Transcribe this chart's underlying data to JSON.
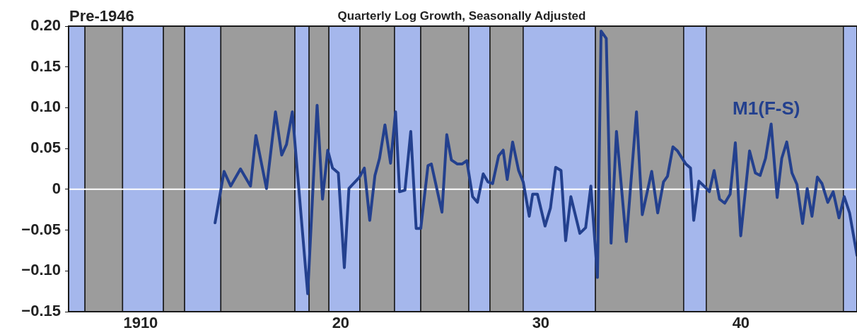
{
  "chart_data": {
    "type": "line",
    "title": "Quarterly Log Growth, Seasonally Adjusted",
    "subtitle": "Pre-1946",
    "xlim": [
      1906.4,
      1945.8
    ],
    "xticks": [
      1910,
      {
        "value": 1920,
        "label": "20"
      },
      {
        "value": 1930,
        "label": "30"
      },
      {
        "value": 1940,
        "label": "40"
      }
    ],
    "ylim": [
      -0.15,
      0.2
    ],
    "yticks": [
      {
        "value": -0.15,
        "label": "−0.15"
      },
      {
        "value": -0.1,
        "label": "−0.10"
      },
      {
        "value": -0.05,
        "label": "−0.05"
      },
      0,
      {
        "value": 0.05,
        "label": "0.05"
      },
      {
        "value": 0.1,
        "label": "0.10"
      },
      {
        "value": 0.15,
        "label": "0.15"
      },
      {
        "value": 0.2,
        "label": "0.20"
      }
    ],
    "grid": false,
    "legend": false,
    "marker": "none",
    "line_style": "solid",
    "series": [
      {
        "name": "M1(F-S)",
        "color": "#23408e",
        "x": [
          1913.72,
          1914.17,
          1914.5,
          1914.99,
          1915.49,
          1915.76,
          1916.29,
          1916.74,
          1917.05,
          1917.29,
          1917.58,
          1918.35,
          1918.82,
          1919.09,
          1919.35,
          1919.59,
          1919.88,
          1920.18,
          1920.41,
          1920.94,
          1921.18,
          1921.45,
          1921.71,
          1921.94,
          1922.21,
          1922.49,
          1922.74,
          1922.94,
          1923.21,
          1923.5,
          1923.77,
          1924.0,
          1924.36,
          1924.53,
          1925.06,
          1925.3,
          1925.53,
          1925.83,
          1926.06,
          1926.3,
          1926.59,
          1926.83,
          1927.12,
          1927.36,
          1927.59,
          1927.89,
          1928.12,
          1928.32,
          1928.59,
          1928.89,
          1929.12,
          1929.42,
          1929.59,
          1929.83,
          1930.21,
          1930.48,
          1930.74,
          1931.01,
          1931.24,
          1931.5,
          1931.95,
          1932.24,
          1932.5,
          1932.83,
          1933.01,
          1933.27,
          1933.51,
          1933.78,
          1934.27,
          1934.78,
          1935.07,
          1935.54,
          1935.84,
          1936.13,
          1936.33,
          1936.6,
          1936.83,
          1937.25,
          1937.48,
          1937.64,
          1937.9,
          1938.28,
          1938.42,
          1938.66,
          1938.93,
          1939.19,
          1939.46,
          1939.72,
          1939.99,
          1940.43,
          1940.72,
          1940.96,
          1941.23,
          1941.51,
          1941.81,
          1942.04,
          1942.29,
          1942.55,
          1942.8,
          1943.08,
          1943.31,
          1943.55,
          1943.82,
          1944.05,
          1944.34,
          1944.61,
          1944.9,
          1945.16,
          1945.43,
          1945.8
        ],
        "values": [
          -0.041,
          0.022,
          0.004,
          0.025,
          0.004,
          0.066,
          0.001,
          0.095,
          0.042,
          0.055,
          0.095,
          -0.128,
          0.103,
          -0.012,
          0.048,
          0.026,
          0.02,
          -0.096,
          0.001,
          0.015,
          0.026,
          -0.038,
          0.017,
          0.038,
          0.079,
          0.032,
          0.095,
          -0.003,
          -0.001,
          0.071,
          -0.048,
          -0.048,
          0.029,
          0.031,
          -0.028,
          0.067,
          0.036,
          0.031,
          0.031,
          0.035,
          -0.009,
          -0.016,
          0.019,
          0.009,
          0.007,
          0.041,
          0.048,
          0.012,
          0.058,
          0.023,
          0.009,
          -0.033,
          -0.006,
          -0.006,
          -0.045,
          -0.023,
          0.027,
          0.023,
          -0.063,
          -0.009,
          -0.054,
          -0.047,
          0.004,
          -0.108,
          0.194,
          0.185,
          -0.066,
          0.071,
          -0.064,
          0.095,
          -0.031,
          0.022,
          -0.029,
          0.009,
          0.016,
          0.052,
          0.047,
          0.031,
          0.026,
          -0.038,
          0.01,
          0.001,
          -0.003,
          0.023,
          -0.012,
          -0.017,
          -0.006,
          0.057,
          -0.057,
          0.047,
          0.02,
          0.017,
          0.038,
          0.08,
          -0.01,
          0.038,
          0.058,
          0.02,
          0.006,
          -0.042,
          0.001,
          -0.033,
          0.015,
          0.007,
          -0.016,
          -0.003,
          -0.035,
          -0.009,
          -0.029,
          -0.081
        ]
      }
    ],
    "ref_lines": [
      {
        "axis": "y",
        "value": 0,
        "color": "#ffffff"
      }
    ],
    "bands": [
      {
        "axis": "x",
        "from": 1906.4,
        "to": 1907.22,
        "color": "#a5b7ec"
      },
      {
        "axis": "x",
        "from": 1907.22,
        "to": 1909.1,
        "color": "#9c9c9c"
      },
      {
        "axis": "x",
        "from": 1909.1,
        "to": 1911.14,
        "color": "#a5b7ec"
      },
      {
        "axis": "x",
        "from": 1911.14,
        "to": 1912.2,
        "color": "#9c9c9c"
      },
      {
        "axis": "x",
        "from": 1912.2,
        "to": 1914.01,
        "color": "#a5b7ec"
      },
      {
        "axis": "x",
        "from": 1914.01,
        "to": 1917.71,
        "color": "#9c9c9c"
      },
      {
        "axis": "x",
        "from": 1917.71,
        "to": 1918.42,
        "color": "#a5b7ec"
      },
      {
        "axis": "x",
        "from": 1918.42,
        "to": 1919.41,
        "color": "#9c9c9c"
      },
      {
        "axis": "x",
        "from": 1919.41,
        "to": 1920.96,
        "color": "#a5b7ec"
      },
      {
        "axis": "x",
        "from": 1920.96,
        "to": 1922.69,
        "color": "#9c9c9c"
      },
      {
        "axis": "x",
        "from": 1922.69,
        "to": 1924.0,
        "color": "#a5b7ec"
      },
      {
        "axis": "x",
        "from": 1924.0,
        "to": 1926.4,
        "color": "#9c9c9c"
      },
      {
        "axis": "x",
        "from": 1926.4,
        "to": 1927.46,
        "color": "#a5b7ec"
      },
      {
        "axis": "x",
        "from": 1927.46,
        "to": 1929.12,
        "color": "#9c9c9c"
      },
      {
        "axis": "x",
        "from": 1929.12,
        "to": 1932.73,
        "color": "#a5b7ec"
      },
      {
        "axis": "x",
        "from": 1932.73,
        "to": 1937.14,
        "color": "#9c9c9c"
      },
      {
        "axis": "x",
        "from": 1937.14,
        "to": 1938.27,
        "color": "#a5b7ec"
      },
      {
        "axis": "x",
        "from": 1938.27,
        "to": 1945.12,
        "color": "#9c9c9c"
      },
      {
        "axis": "x",
        "from": 1945.12,
        "to": 1945.8,
        "color": "#a5b7ec"
      }
    ]
  }
}
